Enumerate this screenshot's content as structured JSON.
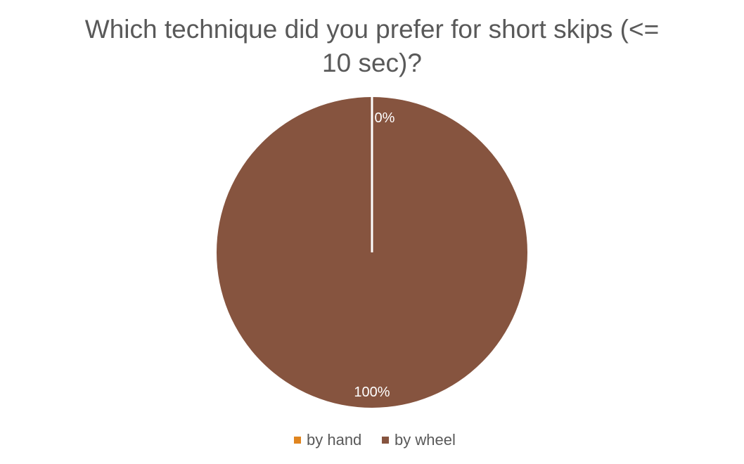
{
  "chart_data": {
    "type": "pie",
    "title_lines": [
      "Which technique did you prefer for short skips (<=",
      "10 sec)?"
    ],
    "categories": [
      "by hand",
      "by wheel"
    ],
    "values": [
      0,
      100
    ],
    "data_labels": [
      "0%",
      "100%"
    ],
    "colors": [
      "#E0851F",
      "#86543F"
    ],
    "slice_border_color": "#FFFFFF",
    "start_angle": "12 o'clock, clockwise",
    "legend_position": "bottom"
  }
}
